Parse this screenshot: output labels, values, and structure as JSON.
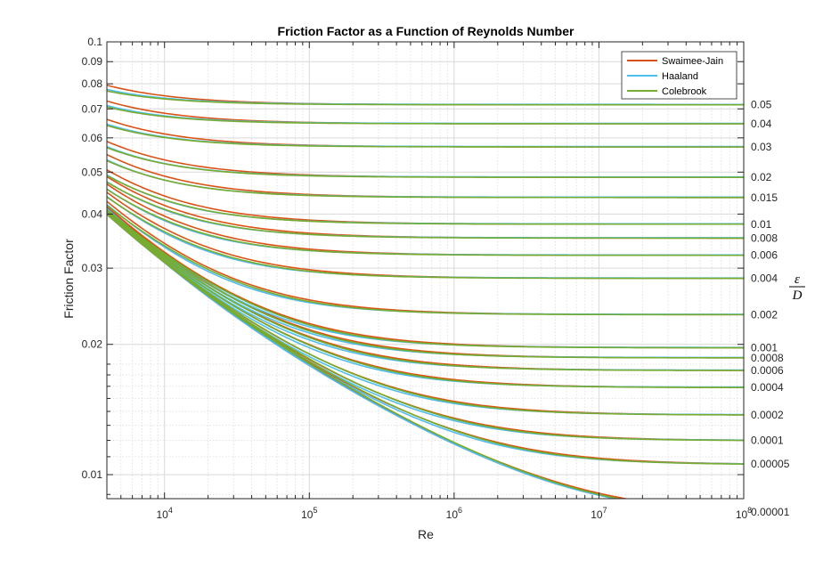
{
  "chart_data": {
    "type": "line",
    "title": "Friction Factor as a Function of Reynolds Number",
    "xlabel": "Re",
    "ylabel": "Friction Factor",
    "x_scale": "log",
    "y_scale": "log",
    "xlim": [
      4000,
      100000000
    ],
    "ylim": [
      0.0088,
      0.1
    ],
    "grid": true,
    "minor_grid": true,
    "legend_position": "top-right",
    "x_ticks": [
      {
        "value": 10000,
        "base": "10",
        "exp": "4"
      },
      {
        "value": 100000,
        "base": "10",
        "exp": "5"
      },
      {
        "value": 1000000,
        "base": "10",
        "exp": "6"
      },
      {
        "value": 10000000,
        "base": "10",
        "exp": "7"
      },
      {
        "value": 100000000,
        "base": "10",
        "exp": "8"
      }
    ],
    "y_ticks": [
      {
        "value": 0.01,
        "label": "0.01"
      },
      {
        "value": 0.02,
        "label": "0.02"
      },
      {
        "value": 0.03,
        "label": "0.03"
      },
      {
        "value": 0.04,
        "label": "0.04"
      },
      {
        "value": 0.05,
        "label": "0.05"
      },
      {
        "value": 0.06,
        "label": "0.06"
      },
      {
        "value": 0.07,
        "label": "0.07"
      },
      {
        "value": 0.08,
        "label": "0.08"
      },
      {
        "value": 0.09,
        "label": "0.09"
      },
      {
        "value": 0.1,
        "label": "0.1"
      }
    ],
    "series": [
      {
        "name": "Swaimee-Jain",
        "color": "#D95319",
        "method": "swamee-jain"
      },
      {
        "name": "Haaland",
        "color": "#4DBEEE",
        "method": "haaland"
      },
      {
        "name": "Colebrook",
        "color": "#77AC30",
        "method": "colebrook"
      }
    ],
    "relative_roughness": [
      0.05,
      0.04,
      0.03,
      0.02,
      0.015,
      0.01,
      0.008,
      0.006,
      0.004,
      0.002,
      0.001,
      0.0008,
      0.0006,
      0.0004,
      0.0002,
      0.0001,
      5e-05,
      1e-05
    ],
    "roughness_labels": [
      "0.05",
      "0.04",
      "0.03",
      "0.02",
      "0.015",
      "0.01",
      "0.008",
      "0.006",
      "0.004",
      "0.002",
      "0.001",
      "0.0008",
      "0.0006",
      "0.0004",
      "0.0002",
      "0.0001",
      "0.00005",
      "0.00001"
    ],
    "roughness_axis_label": {
      "numerator": "ε",
      "denominator": "D"
    }
  }
}
